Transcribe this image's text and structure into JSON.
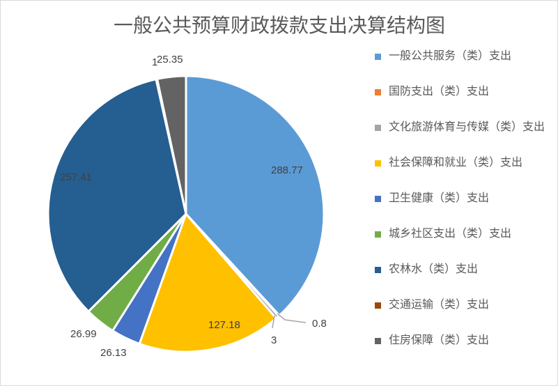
{
  "chart_data": {
    "type": "pie",
    "title": "一般公共预算财政拨款支出决算结构图",
    "categories": [
      "一般公共服务（类）支出",
      "国防支出（类）支出",
      "文化旅游体育与传媒（类）支出",
      "社会保障和就业（类）支出",
      "卫生健康（类）支出",
      "城乡社区支出（类）支出",
      "农林水（类）支出",
      "交通运输（类）支出",
      "住房保障（类）支出"
    ],
    "values": [
      288.77,
      0.8,
      3,
      127.18,
      26.13,
      26.99,
      257.41,
      1,
      25.35
    ],
    "value_labels": [
      "288.77",
      "0.8",
      "3",
      "127.18",
      "26.13",
      "26.99",
      "257.41",
      "1",
      "25.35"
    ],
    "colors": [
      "#5B9BD5",
      "#ED7D31",
      "#A5A5A5",
      "#FFC000",
      "#4472C4",
      "#70AD47",
      "#255E91",
      "#9E480E",
      "#636363"
    ],
    "legend": "right"
  }
}
